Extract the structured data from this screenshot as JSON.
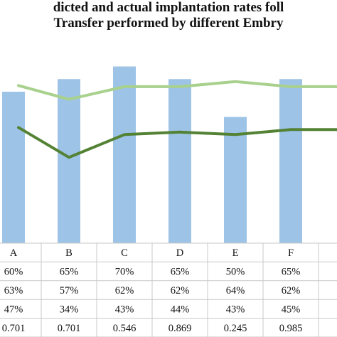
{
  "chart_data": {
    "type": "bar",
    "title_lines": [
      "dicted and actual implantation rates foll",
      "Transfer performed by different Embry"
    ],
    "categories": [
      "A",
      "B",
      "C",
      "D",
      "E",
      "F",
      ""
    ],
    "ylim": [
      0,
      80
    ],
    "series": [
      {
        "kind": "bar",
        "values": [
          60,
          65,
          70,
          65,
          50,
          65,
          null
        ],
        "color": "#9dc3e6"
      },
      {
        "kind": "line",
        "values": [
          63,
          57,
          62,
          62,
          64,
          62,
          62
        ],
        "color": "#a9d18e"
      },
      {
        "kind": "line",
        "values": [
          47,
          34,
          43,
          44,
          43,
          45,
          45
        ],
        "color": "#548235"
      }
    ],
    "table_rows": [
      [
        "60%",
        "65%",
        "70%",
        "65%",
        "50%",
        "65%",
        ""
      ],
      [
        "63%",
        "57%",
        "62%",
        "62%",
        "64%",
        "62%",
        ""
      ],
      [
        "47%",
        "34%",
        "43%",
        "44%",
        "43%",
        "45%",
        ""
      ],
      [
        "0.701",
        "0.701",
        "0.546",
        "0.869",
        "0.245",
        "0.985",
        ""
      ]
    ],
    "grid": false,
    "legend": "none"
  }
}
